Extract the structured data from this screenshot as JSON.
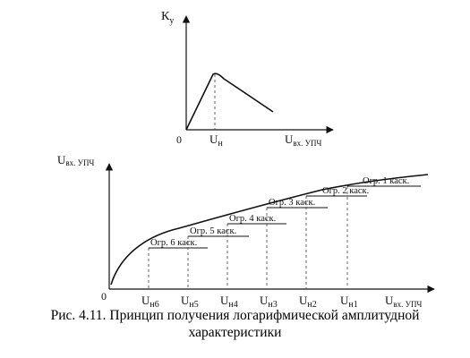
{
  "top_chart": {
    "y_axis_label": "К",
    "y_axis_sub": "у",
    "origin_label": "0",
    "x_tick_label": "U",
    "x_tick_sub": "н",
    "x_axis_label": "U",
    "x_axis_sub": "вх. УПЧ"
  },
  "bottom_chart": {
    "y_axis_label": "U",
    "y_axis_sub": "вх. УПЧ",
    "origin_label": "0",
    "x_axis_label": "U",
    "x_axis_sub": "вх. УПЧ",
    "ticks": [
      {
        "label": "U",
        "sub": "н6"
      },
      {
        "label": "U",
        "sub": "н5"
      },
      {
        "label": "U",
        "sub": "н4"
      },
      {
        "label": "U",
        "sub": "н3"
      },
      {
        "label": "U",
        "sub": "н2"
      },
      {
        "label": "U",
        "sub": "н1"
      }
    ],
    "stages": [
      "Огр. 6 каск.",
      "Огр. 5 каск.",
      "Огр. 4 каск.",
      "Огр. 3 каск.",
      "Огр. 2 каск.",
      "Огр. 1 каск."
    ]
  },
  "caption": {
    "line1": "Рис. 4.11. Принцип получения логарифмической амплитудной",
    "line2": "характеристики"
  }
}
